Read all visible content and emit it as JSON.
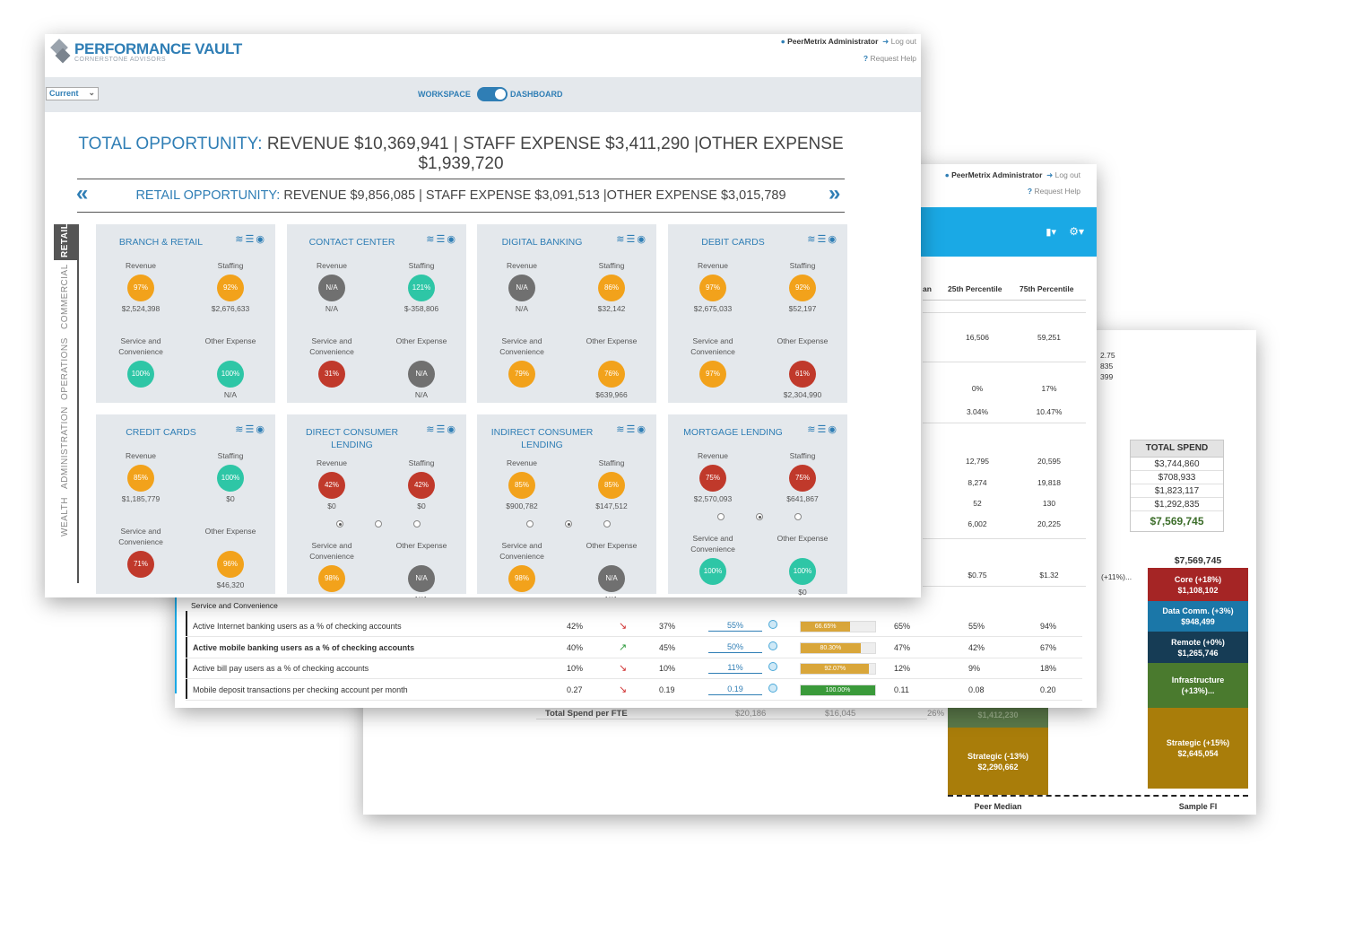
{
  "front": {
    "brand": "PERFORMANCE VAULT",
    "subbrand": "CORNERSTONE ADVISORS",
    "user": "PeerMetrix Administrator",
    "logout": "Log out",
    "help": "Request Help",
    "select_value": "Current",
    "toggle_left": "WORKSPACE",
    "toggle_right": "DASHBOARD",
    "total_label": "TOTAL OPPORTUNITY:",
    "total_text": "REVENUE $10,369,941  | STAFF EXPENSE $3,411,290  |OTHER EXPENSE",
    "total_line2": "$1,939,720",
    "retail_label": "RETAIL OPPORTUNITY:",
    "retail_text": "REVENUE $9,856,085  | STAFF EXPENSE $3,091,513  |OTHER EXPENSE $3,015,789",
    "prev": "«",
    "next": "»",
    "sidetabs": [
      "RETAIL",
      "COMMERCIAL",
      "OPERATIONS",
      "ADMINISTRATION",
      "WEALTH"
    ],
    "icons": "📈☰👁",
    "cards": [
      {
        "title": "BRANCH & RETAIL",
        "c": [
          {
            "l": "Revenue",
            "p": "97%",
            "k": "o",
            "v": "$2,524,398"
          },
          {
            "l": "Staffing",
            "p": "92%",
            "k": "o",
            "v": "$2,676,633"
          },
          {
            "l": "Service and Convenience",
            "p": "100%",
            "k": "t",
            "v": ""
          },
          {
            "l": "Other Expense",
            "p": "100%",
            "k": "t",
            "v": "N/A"
          }
        ]
      },
      {
        "title": "CONTACT CENTER",
        "c": [
          {
            "l": "Revenue",
            "p": "N/A",
            "k": "g",
            "v": "N/A"
          },
          {
            "l": "Staffing",
            "p": "121%",
            "k": "t",
            "v": "$-358,806"
          },
          {
            "l": "Service and Convenience",
            "p": "31%",
            "k": "r",
            "v": ""
          },
          {
            "l": "Other Expense",
            "p": "N/A",
            "k": "g",
            "v": "N/A"
          }
        ]
      },
      {
        "title": "DIGITAL BANKING",
        "c": [
          {
            "l": "Revenue",
            "p": "N/A",
            "k": "g",
            "v": "N/A"
          },
          {
            "l": "Staffing",
            "p": "86%",
            "k": "o",
            "v": "$32,142"
          },
          {
            "l": "Service and Convenience",
            "p": "79%",
            "k": "o",
            "v": ""
          },
          {
            "l": "Other Expense",
            "p": "76%",
            "k": "o",
            "v": "$639,966"
          }
        ]
      },
      {
        "title": "DEBIT CARDS",
        "c": [
          {
            "l": "Revenue",
            "p": "97%",
            "k": "o",
            "v": "$2,675,033"
          },
          {
            "l": "Staffing",
            "p": "92%",
            "k": "o",
            "v": "$52,197"
          },
          {
            "l": "Service and Convenience",
            "p": "97%",
            "k": "o",
            "v": ""
          },
          {
            "l": "Other Expense",
            "p": "61%",
            "k": "r",
            "v": "$2,304,990"
          }
        ]
      },
      {
        "title": "CREDIT CARDS",
        "c": [
          {
            "l": "Revenue",
            "p": "85%",
            "k": "o",
            "v": "$1,185,779"
          },
          {
            "l": "Staffing",
            "p": "100%",
            "k": "t",
            "v": "$0"
          },
          {
            "l": "Service and Convenience",
            "p": "71%",
            "k": "r",
            "v": ""
          },
          {
            "l": "Other Expense",
            "p": "96%",
            "k": "o",
            "v": "$46,320"
          }
        ]
      },
      {
        "title": "DIRECT CONSUMER LENDING",
        "c": [
          {
            "l": "Revenue",
            "p": "42%",
            "k": "r",
            "v": "$0"
          },
          {
            "l": "Staffing",
            "p": "42%",
            "k": "r",
            "v": "$0"
          },
          {
            "l": "Service and Convenience",
            "p": "98%",
            "k": "o",
            "v": ""
          },
          {
            "l": "Other Expense",
            "p": "N/A",
            "k": "g",
            "v": "N/A"
          }
        ],
        "radio": 0
      },
      {
        "title": "INDIRECT CONSUMER LENDING",
        "c": [
          {
            "l": "Revenue",
            "p": "85%",
            "k": "o",
            "v": "$900,782"
          },
          {
            "l": "Staffing",
            "p": "85%",
            "k": "o",
            "v": "$147,512"
          },
          {
            "l": "Service and Convenience",
            "p": "98%",
            "k": "o",
            "v": ""
          },
          {
            "l": "Other Expense",
            "p": "N/A",
            "k": "g",
            "v": "N/A"
          }
        ],
        "radio": 1
      },
      {
        "title": "MORTGAGE LENDING",
        "c": [
          {
            "l": "Revenue",
            "p": "75%",
            "k": "r",
            "v": "$2,570,093"
          },
          {
            "l": "Staffing",
            "p": "75%",
            "k": "r",
            "v": "$641,867"
          },
          {
            "l": "Service and Convenience",
            "p": "100%",
            "k": "t",
            "v": ""
          },
          {
            "l": "Other Expense",
            "p": "100%",
            "k": "t",
            "v": "$0"
          }
        ],
        "radio": 1
      }
    ]
  },
  "mid": {
    "user": "PeerMetrix Administrator",
    "logout": "Log out",
    "help": "Request Help",
    "hdr": [
      "an",
      "25th Percentile",
      "75th Percentile"
    ],
    "upper": [
      [
        "16,506",
        "59,251"
      ],
      [
        "0%",
        "17%"
      ],
      [
        "3.04%",
        "10.47%"
      ],
      [
        "12,795",
        "20,595"
      ],
      [
        "8,274",
        "19,818"
      ],
      [
        "52",
        "130"
      ],
      [
        "6,002",
        "20,225"
      ],
      [
        "$0.75",
        "$1.32"
      ]
    ],
    "partial": [
      "2.75",
      "835",
      "399"
    ],
    "section": "Service and Convenience",
    "rows": [
      {
        "n": "Active Internet banking users as a % of checking accounts",
        "a": "42%",
        "arr": "↘",
        "b": "37%",
        "c": "55%",
        "bar": "66.65%",
        "f": 0.6665,
        "col": "#d9a63a",
        "d": "65%",
        "e": "55%",
        "g": "94%",
        "bold": false
      },
      {
        "n": "Active mobile banking users as a % of checking accounts",
        "a": "40%",
        "arr": "↗",
        "b": "45%",
        "c": "50%",
        "bar": "80.30%",
        "f": 0.803,
        "col": "#d9a63a",
        "d": "47%",
        "e": "42%",
        "g": "67%",
        "bold": true
      },
      {
        "n": "Active bill pay users as a % of checking accounts",
        "a": "10%",
        "arr": "↘",
        "b": "10%",
        "c": "11%",
        "bar": "92.07%",
        "f": 0.9207,
        "col": "#d9a63a",
        "d": "12%",
        "e": "9%",
        "g": "18%",
        "bold": false
      },
      {
        "n": "Mobile deposit transactions per checking account per month",
        "a": "0.27",
        "arr": "↘",
        "b": "0.19",
        "c": "0.19",
        "bar": "100.00%",
        "f": 1.0,
        "col": "#3a9a3a",
        "d": "0.11",
        "e": "0.08",
        "g": "0.20",
        "bold": false
      }
    ],
    "partial_left": "(+11%)..."
  },
  "back": {
    "table_head": "TOTAL SPEND",
    "table_rows": [
      "$3,744,860",
      "$708,933",
      "$1,823,117",
      "$1,292,835"
    ],
    "table_total": "$7,569,745",
    "row_label": "Total Spend per FTE",
    "row_vals": [
      "$20,186",
      "$16,045",
      "26%"
    ],
    "top_total": "$7,569,745",
    "left_hidden": "$1,412,230",
    "left_strategic": "Strategic (-13%)\n$2,290,662",
    "stack": [
      {
        "t": "Core (+18%)\n$1,108,102",
        "c": "#a52525"
      },
      {
        "t": "Data Comm. (+3%)\n$948,499",
        "c": "#1b77a8"
      },
      {
        "t": "Remote (+0%)\n$1,265,746",
        "c": "#163c55"
      },
      {
        "t": "Infrastructure (+13%)...",
        "c": "#4a7a2e"
      },
      {
        "t": "Strategic (+15%)\n$2,645,054",
        "c": "#a97d0a"
      }
    ],
    "x_left": "Peer Median",
    "x_right": "Sample FI"
  }
}
